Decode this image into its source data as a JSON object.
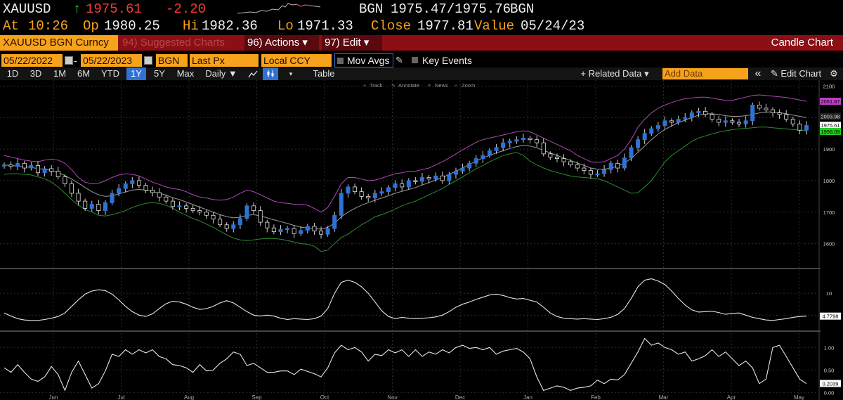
{
  "quote": {
    "ticker": "XAUUSD",
    "arrow": "↑",
    "last": "1975.61",
    "change": "-2.20",
    "bid_source": "BGN",
    "bid_ask": "1975.47/1975.76",
    "ask_source": "BGN",
    "at_label": "At",
    "time": "10:26",
    "open_label": "Op",
    "open": "1980.25",
    "high_label": "Hi",
    "high": "1982.36",
    "low_label": "Lo",
    "low": "1971.33",
    "close_label": "Close",
    "close": "1977.81",
    "value_label": "Value",
    "value_date": "05/24/23"
  },
  "titlebar": {
    "security": "XAUUSD BGN Curncy",
    "suggested": "94) Suggested Charts",
    "actions": "96) Actions ▾",
    "edit": "97) Edit ▾",
    "chart_type": "Candle Chart"
  },
  "params": {
    "start_date": "05/22/2022",
    "separator": "-",
    "end_date": "05/22/2023",
    "source": "BGN",
    "field": "Last Px",
    "currency": "Local CCY",
    "mov_avgs": "Mov Avgs",
    "key_events": "Key Events"
  },
  "toolbar": {
    "periods": [
      "1D",
      "3D",
      "1M",
      "6M",
      "YTD",
      "1Y",
      "5Y",
      "Max"
    ],
    "selected_period": "1Y",
    "frequency": "Daily ▼",
    "table": "Table",
    "related_data": "+ Related Data ▾",
    "add_data_placeholder": "Add Data",
    "collapse": "«",
    "edit_chart": "✎ Edit Chart",
    "settings_icon": "gear-icon"
  },
  "chart_tools": [
    "Track",
    "Annotate",
    "News",
    "Zoom"
  ],
  "colors": {
    "accent_orange": "#f7a21b",
    "title_red": "#8c0f15",
    "up_candle": "#2f72d6",
    "upper_band": "#b04ab8",
    "lower_band": "#2e8b2e",
    "up_tick": "#22dd44",
    "down_tick": "#f03c3c"
  },
  "chart_data": [
    {
      "type": "candlestick",
      "panel": "price",
      "x_labels": [
        "Jun",
        "Jul",
        "Aug",
        "Sep",
        "Oct",
        "Nov",
        "Dec",
        "Jan",
        "Feb",
        "Mar",
        "Apr",
        "May"
      ],
      "y_ticks": [
        1600,
        1700,
        1800,
        1900,
        2000,
        2100
      ],
      "ylim": [
        1530,
        2110
      ],
      "close_series": [
        1850,
        1845,
        1855,
        1840,
        1848,
        1825,
        1838,
        1830,
        1812,
        1790,
        1760,
        1735,
        1712,
        1725,
        1705,
        1730,
        1760,
        1775,
        1790,
        1800,
        1785,
        1770,
        1762,
        1748,
        1735,
        1718,
        1720,
        1712,
        1705,
        1700,
        1690,
        1678,
        1660,
        1648,
        1660,
        1680,
        1720,
        1705,
        1668,
        1650,
        1638,
        1645,
        1648,
        1632,
        1642,
        1655,
        1640,
        1630,
        1648,
        1690,
        1760,
        1780,
        1765,
        1750,
        1745,
        1760,
        1765,
        1778,
        1790,
        1780,
        1800,
        1798,
        1810,
        1805,
        1815,
        1800,
        1820,
        1830,
        1840,
        1855,
        1870,
        1880,
        1895,
        1905,
        1920,
        1925,
        1930,
        1935,
        1930,
        1920,
        1885,
        1875,
        1870,
        1860,
        1850,
        1840,
        1832,
        1820,
        1822,
        1835,
        1855,
        1840,
        1872,
        1905,
        1930,
        1950,
        1965,
        1975,
        1990,
        1985,
        1995,
        2000,
        2015,
        2020,
        2010,
        1995,
        1985,
        1990,
        1985,
        1980,
        1990,
        2040,
        2030,
        2025,
        2015,
        2010,
        1995,
        1980,
        1960,
        1975
      ],
      "upper_band": [
        1880,
        1875,
        1870,
        1865,
        1862,
        1860,
        1865,
        1868,
        1865,
        1855,
        1835,
        1810,
        1795,
        1790,
        1792,
        1800,
        1810,
        1818,
        1822,
        1820,
        1815,
        1805,
        1795,
        1788,
        1780,
        1775,
        1772,
        1765,
        1755,
        1748,
        1745,
        1740,
        1738,
        1740,
        1748,
        1760,
        1770,
        1765,
        1755,
        1745,
        1735,
        1730,
        1728,
        1725,
        1725,
        1722,
        1712,
        1700,
        1715,
        1750,
        1790,
        1810,
        1810,
        1805,
        1800,
        1802,
        1808,
        1815,
        1822,
        1825,
        1830,
        1830,
        1835,
        1840,
        1850,
        1860,
        1872,
        1885,
        1898,
        1910,
        1922,
        1930,
        1935,
        1940,
        1945,
        1950,
        1955,
        1958,
        1955,
        1945,
        1935,
        1925,
        1915,
        1905,
        1895,
        1880,
        1870,
        1860,
        1858,
        1860,
        1870,
        1880,
        1900,
        1930,
        1970,
        1995,
        2015,
        2030,
        2040,
        2048,
        2055,
        2060,
        2062,
        2065,
        2065,
        2062,
        2058,
        2055,
        2055,
        2060,
        2065,
        2070,
        2072,
        2070,
        2068,
        2066,
        2064,
        2060,
        2056,
        2052
      ],
      "middle_ma": [
        1850,
        1848,
        1846,
        1844,
        1842,
        1838,
        1836,
        1832,
        1826,
        1816,
        1805,
        1792,
        1778,
        1765,
        1755,
        1750,
        1752,
        1758,
        1764,
        1770,
        1772,
        1770,
        1766,
        1760,
        1754,
        1746,
        1740,
        1732,
        1724,
        1716,
        1708,
        1700,
        1692,
        1686,
        1682,
        1684,
        1690,
        1692,
        1688,
        1682,
        1676,
        1670,
        1664,
        1658,
        1652,
        1650,
        1648,
        1646,
        1652,
        1665,
        1685,
        1700,
        1712,
        1722,
        1730,
        1738,
        1745,
        1752,
        1760,
        1766,
        1772,
        1778,
        1786,
        1794,
        1802,
        1810,
        1820,
        1830,
        1840,
        1852,
        1862,
        1872,
        1880,
        1888,
        1895,
        1902,
        1908,
        1912,
        1910,
        1904,
        1896,
        1888,
        1880,
        1872,
        1864,
        1856,
        1848,
        1840,
        1836,
        1836,
        1840,
        1846,
        1856,
        1870,
        1890,
        1910,
        1930,
        1948,
        1962,
        1974,
        1984,
        1992,
        2000,
        2008,
        2012,
        2012,
        2010,
        2006,
        2004,
        2004,
        2006,
        2010,
        2015,
        2018,
        2018,
        2016,
        2012,
        2008,
        2004,
        2000
      ],
      "lower_band": [
        1820,
        1822,
        1822,
        1820,
        1818,
        1812,
        1806,
        1795,
        1780,
        1760,
        1740,
        1722,
        1708,
        1700,
        1690,
        1688,
        1692,
        1698,
        1705,
        1715,
        1722,
        1728,
        1730,
        1728,
        1722,
        1712,
        1700,
        1690,
        1680,
        1672,
        1662,
        1652,
        1640,
        1628,
        1618,
        1612,
        1610,
        1612,
        1615,
        1616,
        1616,
        1614,
        1610,
        1605,
        1600,
        1598,
        1592,
        1575,
        1580,
        1600,
        1620,
        1630,
        1645,
        1660,
        1672,
        1685,
        1692,
        1700,
        1710,
        1720,
        1728,
        1735,
        1745,
        1755,
        1765,
        1775,
        1788,
        1800,
        1812,
        1825,
        1838,
        1848,
        1860,
        1870,
        1880,
        1885,
        1890,
        1880,
        1862,
        1850,
        1840,
        1832,
        1826,
        1820,
        1815,
        1812,
        1810,
        1808,
        1806,
        1800,
        1790,
        1780,
        1770,
        1760,
        1762,
        1780,
        1800,
        1830,
        1860,
        1880,
        1895,
        1910,
        1925,
        1935,
        1942,
        1948,
        1954,
        1958,
        1962,
        1964,
        1966,
        1968,
        1970,
        1970,
        1968,
        1966,
        1964,
        1962,
        1960,
        1958
      ],
      "right_labels": {
        "upper": "2051.87",
        "ma": "2003.98",
        "last": "1975.61",
        "lower": "1956.09"
      }
    },
    {
      "type": "line",
      "panel": "indicator-1",
      "y_ticks": [
        5,
        10
      ],
      "ylim": [
        2,
        15
      ],
      "values": [
        5.5,
        4.8,
        4.2,
        3.9,
        3.8,
        3.8,
        4.0,
        4.3,
        4.7,
        5.5,
        7.0,
        8.5,
        9.8,
        10.5,
        10.8,
        10.6,
        9.8,
        8.5,
        7.0,
        5.8,
        5.0,
        4.7,
        5.3,
        6.5,
        7.6,
        8.2,
        8.0,
        7.5,
        6.8,
        6.3,
        6.5,
        7.0,
        7.8,
        8.3,
        7.8,
        6.8,
        5.8,
        5.0,
        4.8,
        5.0,
        4.8,
        4.3,
        4.0,
        4.2,
        4.1,
        4.0,
        4.2,
        4.8,
        6.5,
        10.0,
        12.5,
        13.0,
        12.5,
        11.5,
        10.0,
        8.0,
        6.0,
        4.7,
        4.2,
        4.5,
        4.3,
        4.2,
        4.3,
        4.4,
        4.6,
        5.0,
        5.8,
        6.8,
        7.5,
        8.0,
        8.6,
        9.1,
        9.6,
        9.8,
        9.5,
        9.0,
        8.7,
        8.8,
        8.4,
        8.0,
        6.8,
        5.5,
        4.7,
        4.3,
        4.2,
        4.1,
        4.2,
        4.1,
        4.0,
        4.2,
        4.5,
        5.2,
        6.5,
        8.8,
        11.5,
        13.0,
        13.3,
        12.8,
        12.0,
        10.5,
        8.8,
        7.3,
        6.2,
        5.7,
        5.8,
        5.9,
        5.6,
        5.2,
        5.4,
        5.5,
        5.0,
        4.5,
        4.2,
        3.9,
        3.8,
        4.0,
        4.2,
        4.5,
        4.7,
        4.78
      ],
      "right_labels": {
        "last": "4.7798"
      }
    },
    {
      "type": "line",
      "panel": "indicator-2",
      "y_ticks": [
        "0.00",
        "0.50",
        "1.00"
      ],
      "ylim": [
        -0.1,
        1.3
      ],
      "values": [
        0.55,
        0.45,
        0.62,
        0.45,
        0.3,
        0.25,
        0.35,
        0.58,
        0.4,
        0.05,
        0.45,
        0.7,
        0.4,
        0.1,
        0.2,
        0.48,
        0.85,
        0.8,
        0.95,
        0.85,
        0.95,
        0.88,
        0.95,
        0.8,
        0.75,
        0.62,
        0.6,
        0.55,
        0.45,
        0.62,
        0.48,
        0.5,
        0.65,
        0.75,
        0.9,
        0.85,
        0.6,
        0.65,
        0.55,
        0.45,
        0.45,
        0.48,
        0.48,
        0.4,
        0.52,
        0.47,
        0.42,
        0.35,
        0.55,
        0.88,
        1.05,
        0.95,
        1.0,
        0.9,
        0.7,
        0.85,
        0.82,
        0.95,
        0.88,
        0.95,
        0.8,
        0.95,
        0.8,
        0.9,
        0.85,
        0.95,
        0.88,
        1.0,
        1.05,
        0.98,
        1.0,
        0.95,
        1.0,
        0.85,
        0.92,
        0.95,
        0.98,
        0.9,
        0.75,
        0.35,
        0.05,
        0.1,
        0.15,
        0.12,
        0.05,
        0.1,
        0.12,
        0.15,
        0.28,
        0.2,
        0.3,
        0.28,
        0.4,
        0.65,
        0.9,
        1.2,
        1.05,
        1.1,
        1.0,
        0.95,
        0.85,
        0.9,
        0.7,
        0.75,
        0.82,
        0.95,
        0.8,
        0.9,
        0.75,
        0.6,
        0.7,
        0.55,
        0.2,
        0.3,
        1.0,
        1.05,
        0.8,
        0.55,
        0.3,
        0.2
      ],
      "right_labels": {
        "last": "0.2039"
      }
    }
  ]
}
